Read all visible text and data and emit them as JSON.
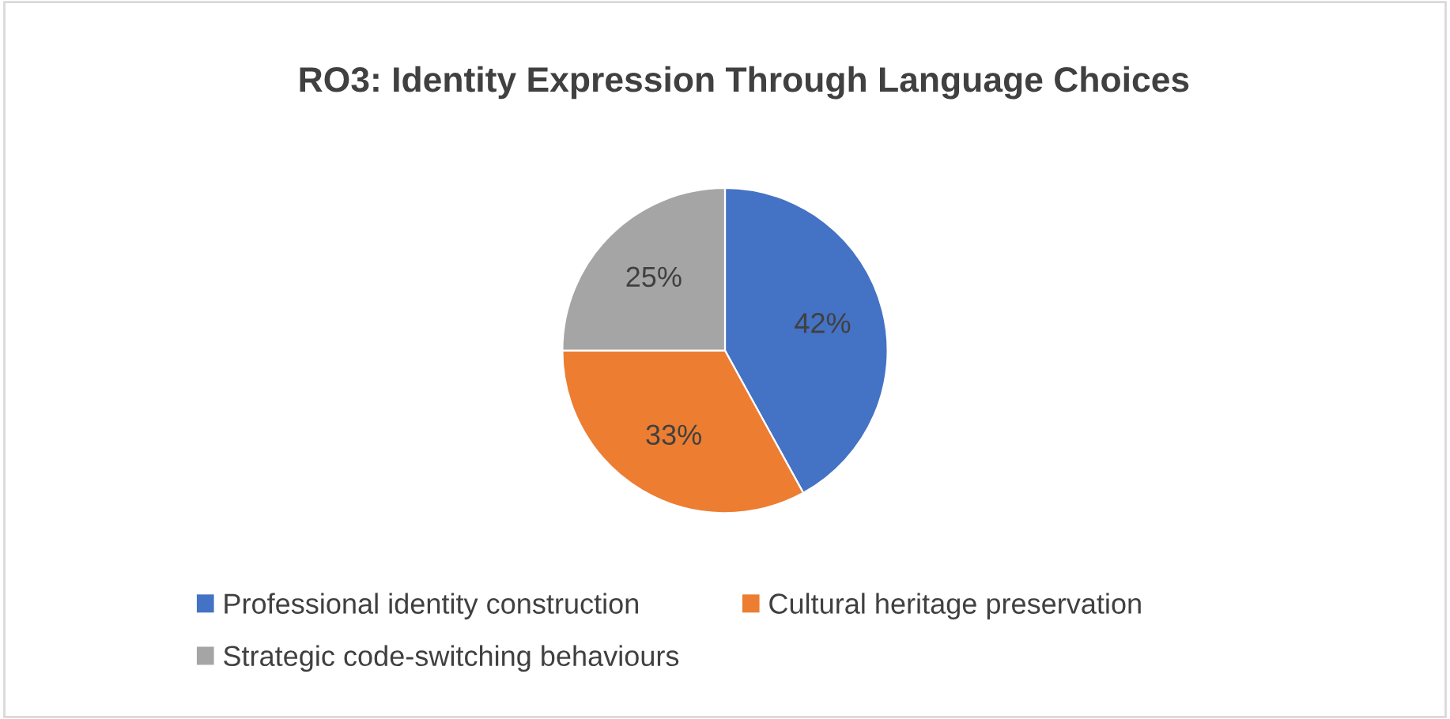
{
  "chart_data": {
    "type": "pie",
    "title": "RO3: Identity Expression Through Language Choices",
    "categories": [
      "Professional identity construction",
      "Cultural heritage preservation",
      "Strategic code-switching behaviours"
    ],
    "values": [
      42,
      33,
      25
    ],
    "colors": [
      "#4472c4",
      "#ed7d31",
      "#a5a5a5"
    ],
    "value_labels": [
      "42%",
      "33%",
      "25%"
    ],
    "legend": "bottom"
  }
}
